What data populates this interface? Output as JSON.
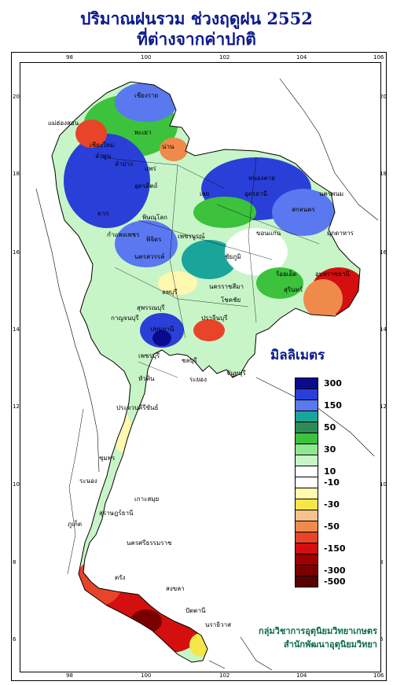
{
  "title": {
    "line1": "ปริมาณฝนรวม ช่วงฤดูฝน 2552",
    "line2": "ที่ต่างจากค่าปกติ"
  },
  "axes": {
    "top_ticks": [
      "98",
      "100",
      "102",
      "104",
      "106"
    ],
    "bottom_ticks": [
      "98",
      "100",
      "102",
      "104",
      "106"
    ],
    "left_ticks": [
      "20",
      "18",
      "16",
      "14",
      "12",
      "10",
      "8",
      "6"
    ],
    "right_ticks": [
      "20",
      "18",
      "16",
      "14",
      "12",
      "10",
      "8",
      "6"
    ]
  },
  "legend": {
    "title": "มิลลิเมตร",
    "entries": [
      {
        "color": "#0a0a8c",
        "label": "300"
      },
      {
        "color": "#2a3fd8",
        "label": ""
      },
      {
        "color": "#5a78f0",
        "label": "150"
      },
      {
        "color": "#1aa59a",
        "label": ""
      },
      {
        "color": "#2e8b57",
        "label": "50"
      },
      {
        "color": "#3cc23c",
        "label": ""
      },
      {
        "color": "#8fe88f",
        "label": "30"
      },
      {
        "color": "#c8f5c8",
        "label": ""
      },
      {
        "color": "#ffffff",
        "label": "10"
      },
      {
        "color": "#ffffff",
        "label": "-10"
      },
      {
        "color": "#fff8b0",
        "label": ""
      },
      {
        "color": "#f5e64a",
        "label": "-30"
      },
      {
        "color": "#f7c38a",
        "label": ""
      },
      {
        "color": "#f08a4a",
        "label": "-50"
      },
      {
        "color": "#e8442a",
        "label": ""
      },
      {
        "color": "#d40f0f",
        "label": "-150"
      },
      {
        "color": "#a00000",
        "label": ""
      },
      {
        "color": "#7a0000",
        "label": "-300"
      },
      {
        "color": "#5a0000",
        "label": "-500"
      }
    ]
  },
  "credit": {
    "line1": "กลุ่มวิชาการอุตุนิยมวิทยาเกษตร",
    "line2": "สำนักพัฒนาอุตุนิยมวิทยา"
  },
  "provinces": [
    "เชียงราย",
    "แม่ฮ่องสอน",
    "เชียงใหม่",
    "ลำพูน",
    "พะเยา",
    "น่าน",
    "ลำปาง",
    "แพร่",
    "อุตรดิตถ์",
    "ตาก",
    "หนองคาย",
    "อุดรธานี",
    "นครพนม",
    "สกลนคร",
    "เลย",
    "พิษณุโลก",
    "มุกดาหาร",
    "ขอนแก่น",
    "กำแพงเพชร",
    "พิจิตร",
    "เพชรบูรณ์",
    "นครสวรรค์",
    "ชัยภูมิ",
    "อุบลราชธานี",
    "ร้อยเอ็ด",
    "สุรินทร์",
    "ลพบุรี",
    "นครราชสีมา",
    "โชคชัย",
    "สุพรรณบุรี",
    "กาญจนบุรี",
    "ปทุมธานี",
    "ปราจีนบุรี",
    "ชลบุรี",
    "ระยอง",
    "เพชรบุรี",
    "จันทบุรี",
    "หัวหิน",
    "ประจวบคีรีขันธ์",
    "ชุมพร",
    "ระนอง",
    "เกาะสมุย",
    "สุราษฎร์ธานี",
    "ภูเก็ต",
    "นครศรีธรรมราช",
    "ตรัง",
    "สงขลา",
    "ปัตตานี",
    "นราธิวาส"
  ]
}
